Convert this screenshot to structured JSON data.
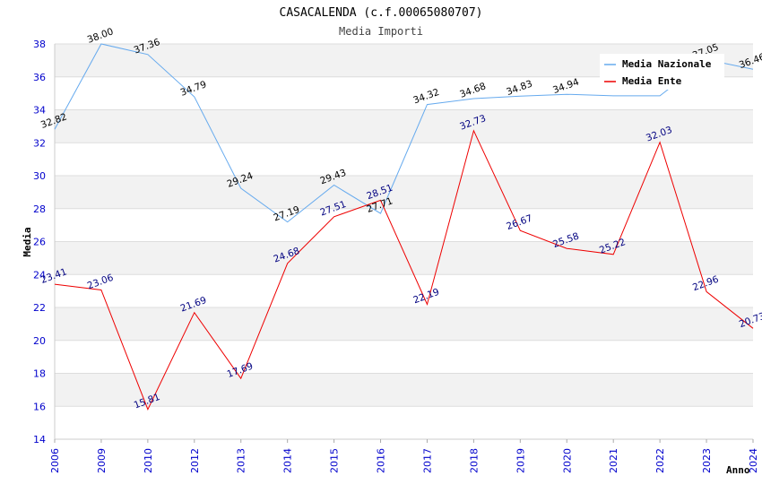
{
  "chart_data": {
    "type": "line",
    "title": "CASACALENDA (c.f.00065080707)",
    "subtitle": "Media Importi",
    "xlabel": "Anno",
    "ylabel": "Media",
    "ylim": [
      14,
      38
    ],
    "yticks": [
      14,
      16,
      18,
      20,
      22,
      24,
      26,
      28,
      30,
      32,
      34,
      36,
      38
    ],
    "categories": [
      "2006",
      "2009",
      "2010",
      "2012",
      "2013",
      "2014",
      "2015",
      "2016",
      "2017",
      "2018",
      "2019",
      "2020",
      "2021",
      "2022",
      "2023",
      "2024"
    ],
    "legend_position": "top-right",
    "series": [
      {
        "name": "Media Nazionale",
        "color": "#66aaee",
        "label_color": "#000000",
        "values": [
          32.82,
          38.0,
          37.36,
          34.79,
          29.24,
          27.19,
          29.43,
          27.71,
          34.32,
          34.68,
          34.83,
          34.94,
          34.85,
          34.85,
          37.05,
          36.46
        ],
        "labels": [
          "32.82",
          "38.00",
          "37.36",
          "34.79",
          "29.24",
          "27.19",
          "29.43",
          "27.71",
          "34.32",
          "34.68",
          "34.83",
          "34.94",
          "",
          "",
          "37.05",
          "36.46"
        ]
      },
      {
        "name": "Media Ente",
        "color": "#ee0000",
        "label_color": "#000080",
        "values": [
          23.41,
          23.06,
          15.81,
          21.69,
          17.69,
          24.68,
          27.51,
          28.51,
          22.19,
          32.73,
          26.67,
          25.58,
          25.22,
          32.03,
          22.96,
          20.73
        ],
        "labels": [
          "23.41",
          "23.06",
          "15.81",
          "21.69",
          "17.69",
          "24.68",
          "27.51",
          "28.51",
          "22.19",
          "32.73",
          "26.67",
          "25.58",
          "25.22",
          "32.03",
          "22.96",
          "20.73"
        ]
      }
    ]
  }
}
